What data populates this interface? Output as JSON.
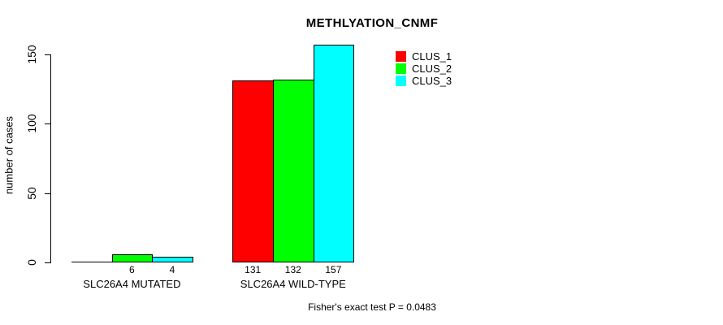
{
  "chart_data": {
    "type": "bar",
    "title": "METHLYATION_CNMF",
    "ylabel": "number of cases",
    "xlabel": "",
    "footer": "Fisher's exact test P = 0.0483",
    "y_ticks": [
      0,
      50,
      100,
      150
    ],
    "ylim": [
      0,
      157
    ],
    "grid": false,
    "legend_position": "top-right",
    "series": [
      {
        "name": "CLUS_1",
        "color": "#ff0000"
      },
      {
        "name": "CLUS_2",
        "color": "#00ff00"
      },
      {
        "name": "CLUS_3",
        "color": "#00ffff"
      }
    ],
    "categories": [
      "SLC26A4 MUTATED",
      "SLC26A4 WILD-TYPE"
    ],
    "groups": [
      {
        "label": "SLC26A4 MUTATED",
        "values": [
          0,
          6,
          4
        ],
        "bar_labels": [
          "",
          "6",
          "4"
        ]
      },
      {
        "label": "SLC26A4 WILD-TYPE",
        "values": [
          131,
          132,
          157
        ],
        "bar_labels": [
          "131",
          "132",
          "157"
        ]
      }
    ]
  }
}
